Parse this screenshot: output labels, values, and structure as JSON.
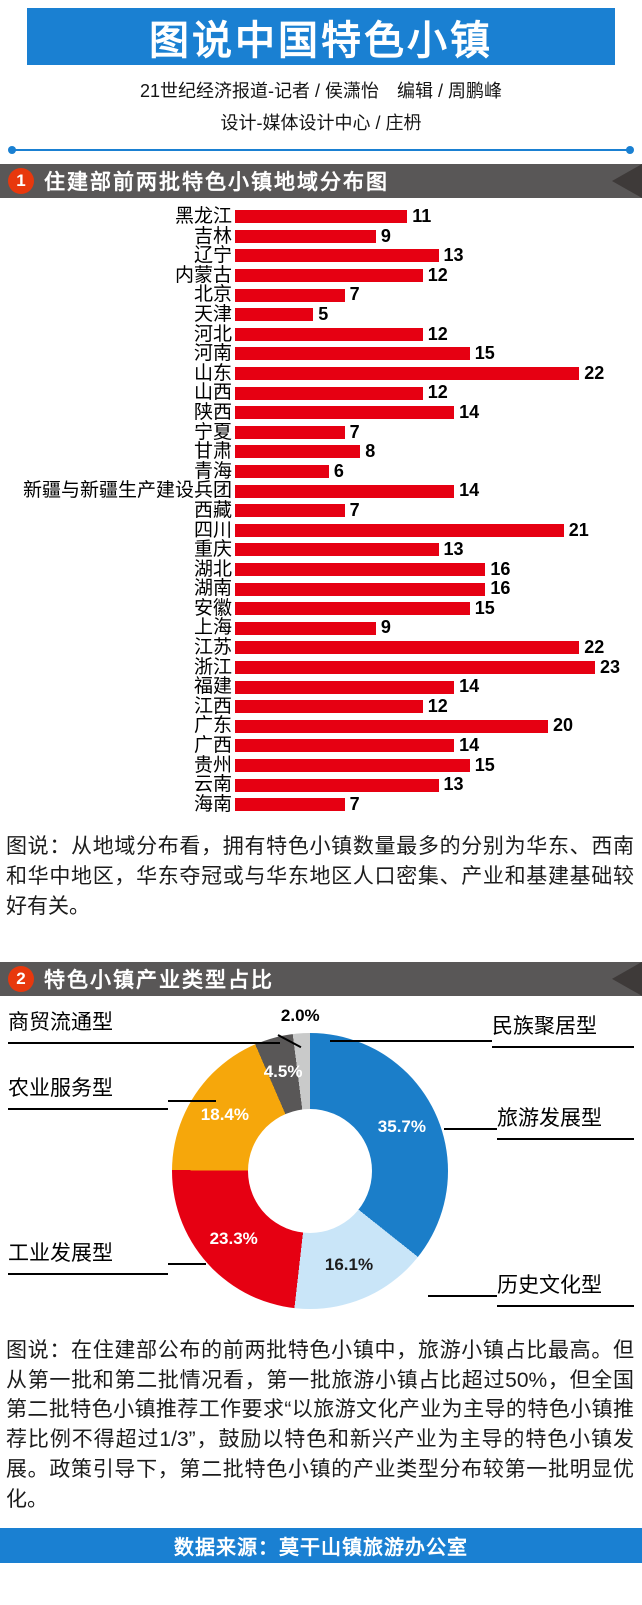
{
  "theme": {
    "accent_blue": "#1a80d2",
    "section_gray": "#595757",
    "number_circle": "#e8380d"
  },
  "header": {
    "title": "图说中国特色小镇",
    "byline1": "21世纪经济报道-记者 / 侯潇怡　编辑 / 周鹏峰",
    "byline2": "设计-媒体设计中心 / 庄枬"
  },
  "section1": {
    "number": "1",
    "title": "住建部前两批特色小镇地域分布图",
    "caption": "图说：从地域分布看，拥有特色小镇数量最多的分别为华东、西南和华中地区，华东夺冠或与华东地区人口密集、产业和基建基础较好有关。"
  },
  "section2": {
    "number": "2",
    "title": "特色小镇产业类型占比",
    "caption": "图说：在住建部公布的前两批特色小镇中，旅游小镇占比最高。但从第一批和第二批情况看，第一批旅游小镇占比超过50%，但全国第二批特色小镇推荐工作要求“以旅游文化产业为主导的特色小镇推荐比例不得超过1/3”，鼓励以特色和新兴产业为主导的特色小镇发展。政策引导下，第二批特色小镇的产业类型分布较第一批明显优化。"
  },
  "footer": {
    "text": "数据来源：莫干山镇旅游办公室"
  },
  "chart_data": [
    {
      "type": "bar",
      "orientation": "horizontal",
      "title": "住建部前两批特色小镇地域分布图",
      "bar_color": "#e60012",
      "xlim": [
        0,
        23
      ],
      "categories": [
        "黑龙江",
        "吉林",
        "辽宁",
        "内蒙古",
        "北京",
        "天津",
        "河北",
        "河南",
        "山东",
        "山西",
        "陕西",
        "宁夏",
        "甘肃",
        "青海",
        "新疆与新疆生产建设兵团",
        "西藏",
        "四川",
        "重庆",
        "湖北",
        "湖南",
        "安徽",
        "上海",
        "江苏",
        "浙江",
        "福建",
        "江西",
        "广东",
        "广西",
        "贵州",
        "云南",
        "海南"
      ],
      "values": [
        11,
        9,
        13,
        12,
        7,
        5,
        12,
        15,
        22,
        12,
        14,
        7,
        8,
        6,
        14,
        7,
        21,
        13,
        16,
        16,
        15,
        9,
        22,
        23,
        14,
        12,
        20,
        14,
        15,
        13,
        7
      ]
    },
    {
      "type": "pie",
      "donut": true,
      "title": "特色小镇产业类型占比",
      "start_angle_deg": 0,
      "slices": [
        {
          "label": "旅游发展型",
          "value": 35.7,
          "color": "#1b7ec9",
          "text_color": "#ffffff"
        },
        {
          "label": "历史文化型",
          "value": 16.1,
          "color": "#c9e5f8",
          "text_color": "#1c1c1c"
        },
        {
          "label": "工业发展型",
          "value": 23.3,
          "color": "#e60012",
          "text_color": "#ffffff"
        },
        {
          "label": "农业服务型",
          "value": 18.4,
          "color": "#f6a70b",
          "text_color": "#ffffff"
        },
        {
          "label": "商贸流通型",
          "value": 4.5,
          "color": "#595757",
          "text_color": "#ffffff"
        },
        {
          "label": "民族聚居型",
          "value": 2.0,
          "color": "#c9caca",
          "text_color": "#000000"
        }
      ]
    }
  ]
}
